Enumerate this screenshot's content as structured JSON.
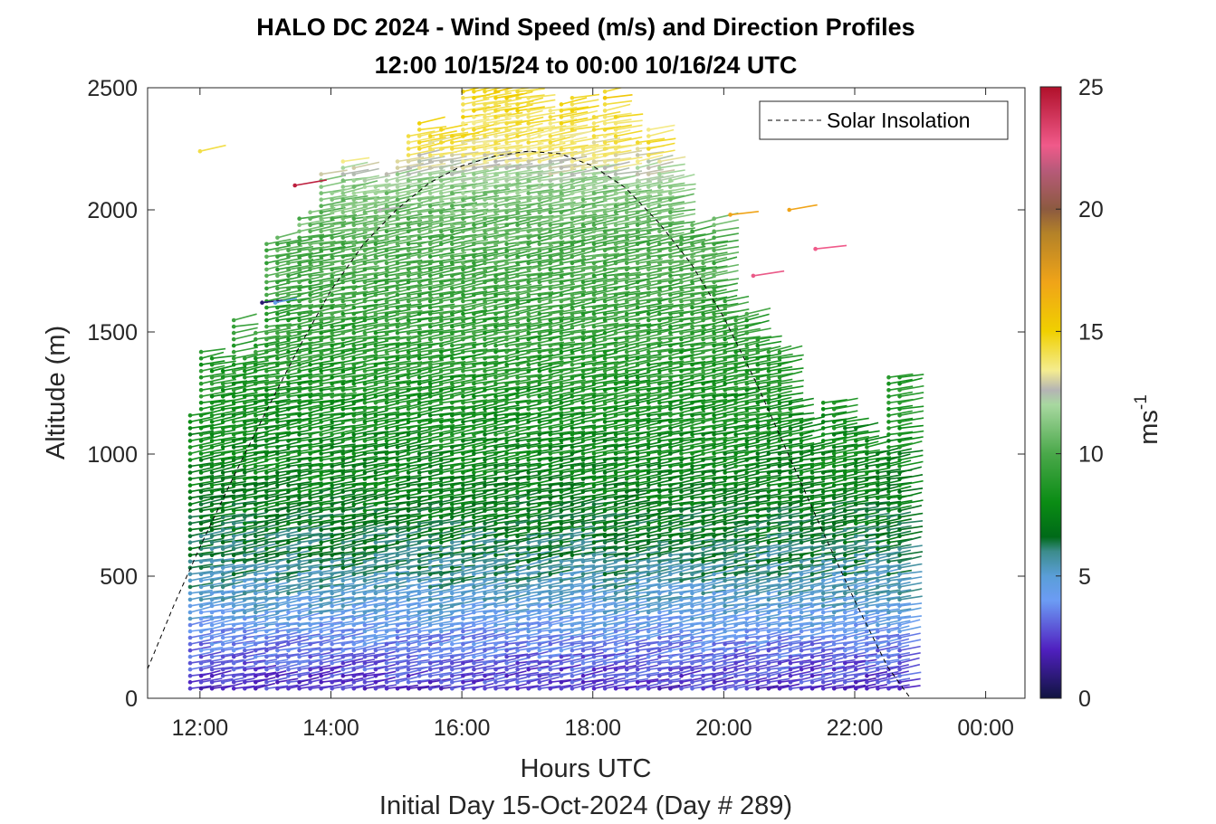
{
  "chart_data": {
    "type": "scatter",
    "subtype": "wind-barb-profile",
    "title_line1": "HALO DC 2024 - Wind Speed (m/s) and Direction Profiles",
    "title_line2": "12:00 10/15/24 to 00:00 10/16/24  UTC",
    "xlabel": "Hours UTC",
    "xlabel2": "Initial Day 15-Oct-2024 (Day # 289)",
    "ylabel": "Altitude (m)",
    "xlim": [
      11.2,
      24.6
    ],
    "ylim": [
      0,
      2500
    ],
    "x_ticks": [
      12,
      14,
      16,
      18,
      20,
      22,
      24
    ],
    "x_tick_labels": [
      "12:00",
      "14:00",
      "16:00",
      "18:00",
      "20:00",
      "22:00",
      "00:00"
    ],
    "y_ticks": [
      0,
      500,
      1000,
      1500,
      2000,
      2500
    ],
    "y_tick_labels": [
      "0",
      "500",
      "1000",
      "1500",
      "2000",
      "2500"
    ],
    "colorbar": {
      "label": "ms",
      "label_superscript": "-1",
      "range": [
        0,
        25
      ],
      "ticks": [
        0,
        5,
        10,
        15,
        20,
        25
      ],
      "tick_labels": [
        "0",
        "5",
        "10",
        "15",
        "20",
        "25"
      ],
      "stops": [
        {
          "v": 0,
          "c": "#101440"
        },
        {
          "v": 2,
          "c": "#5020c0"
        },
        {
          "v": 4,
          "c": "#6c9cf4"
        },
        {
          "v": 5,
          "c": "#5a9ed8"
        },
        {
          "v": 6,
          "c": "#3c8c8c"
        },
        {
          "v": 6.6,
          "c": "#006a18"
        },
        {
          "v": 8,
          "c": "#0a8c14"
        },
        {
          "v": 10,
          "c": "#4aa84a"
        },
        {
          "v": 12,
          "c": "#a8d8a0"
        },
        {
          "v": 12.6,
          "c": "#b4b4b4"
        },
        {
          "v": 13.4,
          "c": "#f4ec90"
        },
        {
          "v": 15,
          "c": "#f0d000"
        },
        {
          "v": 17,
          "c": "#f0a418"
        },
        {
          "v": 19,
          "c": "#b48228"
        },
        {
          "v": 20,
          "c": "#8c5a40"
        },
        {
          "v": 21.6,
          "c": "#b85a7a"
        },
        {
          "v": 22.6,
          "c": "#f05a8a"
        },
        {
          "v": 25,
          "c": "#b0102a"
        }
      ]
    },
    "legend": {
      "position": "top-right",
      "entries": [
        "Solar Insolation"
      ]
    },
    "solar_insolation": {
      "x": [
        11.2,
        11.6,
        12.0,
        12.5,
        13.0,
        13.5,
        14.0,
        14.5,
        15.0,
        15.5,
        16.0,
        16.5,
        17.0,
        17.5,
        18.0,
        18.5,
        19.0,
        19.5,
        20.0,
        20.5,
        21.0,
        21.5,
        22.0,
        22.5,
        22.85,
        24.6
      ],
      "y": [
        120,
        380,
        620,
        900,
        1170,
        1430,
        1670,
        1860,
        2000,
        2110,
        2180,
        2220,
        2240,
        2230,
        2180,
        2090,
        1950,
        1780,
        1560,
        1290,
        990,
        690,
        400,
        130,
        0,
        0
      ]
    },
    "profiles": {
      "time_start": 11.85,
      "time_end": 22.85,
      "time_step": 0.1667,
      "bottom_altitude": 40,
      "altitude_step": 26,
      "top_altitude_min": 1000,
      "top_altitude_max": 2500,
      "speed_layers": [
        {
          "alt": 0,
          "speed": 2.2
        },
        {
          "alt": 150,
          "speed": 3.0
        },
        {
          "alt": 300,
          "speed": 4.3
        },
        {
          "alt": 450,
          "speed": 5.5
        },
        {
          "alt": 700,
          "speed": 6.8
        },
        {
          "alt": 1000,
          "speed": 7.8
        },
        {
          "alt": 1300,
          "speed": 8.6
        },
        {
          "alt": 1600,
          "speed": 9.4
        },
        {
          "alt": 1900,
          "speed": 10.2
        },
        {
          "alt": 2100,
          "speed": 11.4
        },
        {
          "alt": 2250,
          "speed": 13.8
        },
        {
          "alt": 2500,
          "speed": 14.8
        }
      ],
      "direction_deg": 280,
      "notable_barbs": [
        {
          "x": 12.0,
          "alt": 2240,
          "speed": 14.2
        },
        {
          "x": 13.45,
          "alt": 2100,
          "speed": 24.5
        },
        {
          "x": 14.75,
          "alt": 2000,
          "speed": 12.6
        },
        {
          "x": 12.95,
          "alt": 1620,
          "speed": 0.8
        },
        {
          "x": 13.15,
          "alt": 1620,
          "speed": 4.5
        },
        {
          "x": 20.1,
          "alt": 1980,
          "speed": 17
        },
        {
          "x": 20.45,
          "alt": 1730,
          "speed": 22.5
        },
        {
          "x": 21.0,
          "alt": 2000,
          "speed": 17
        },
        {
          "x": 21.4,
          "alt": 1840,
          "speed": 22.6
        }
      ]
    }
  }
}
